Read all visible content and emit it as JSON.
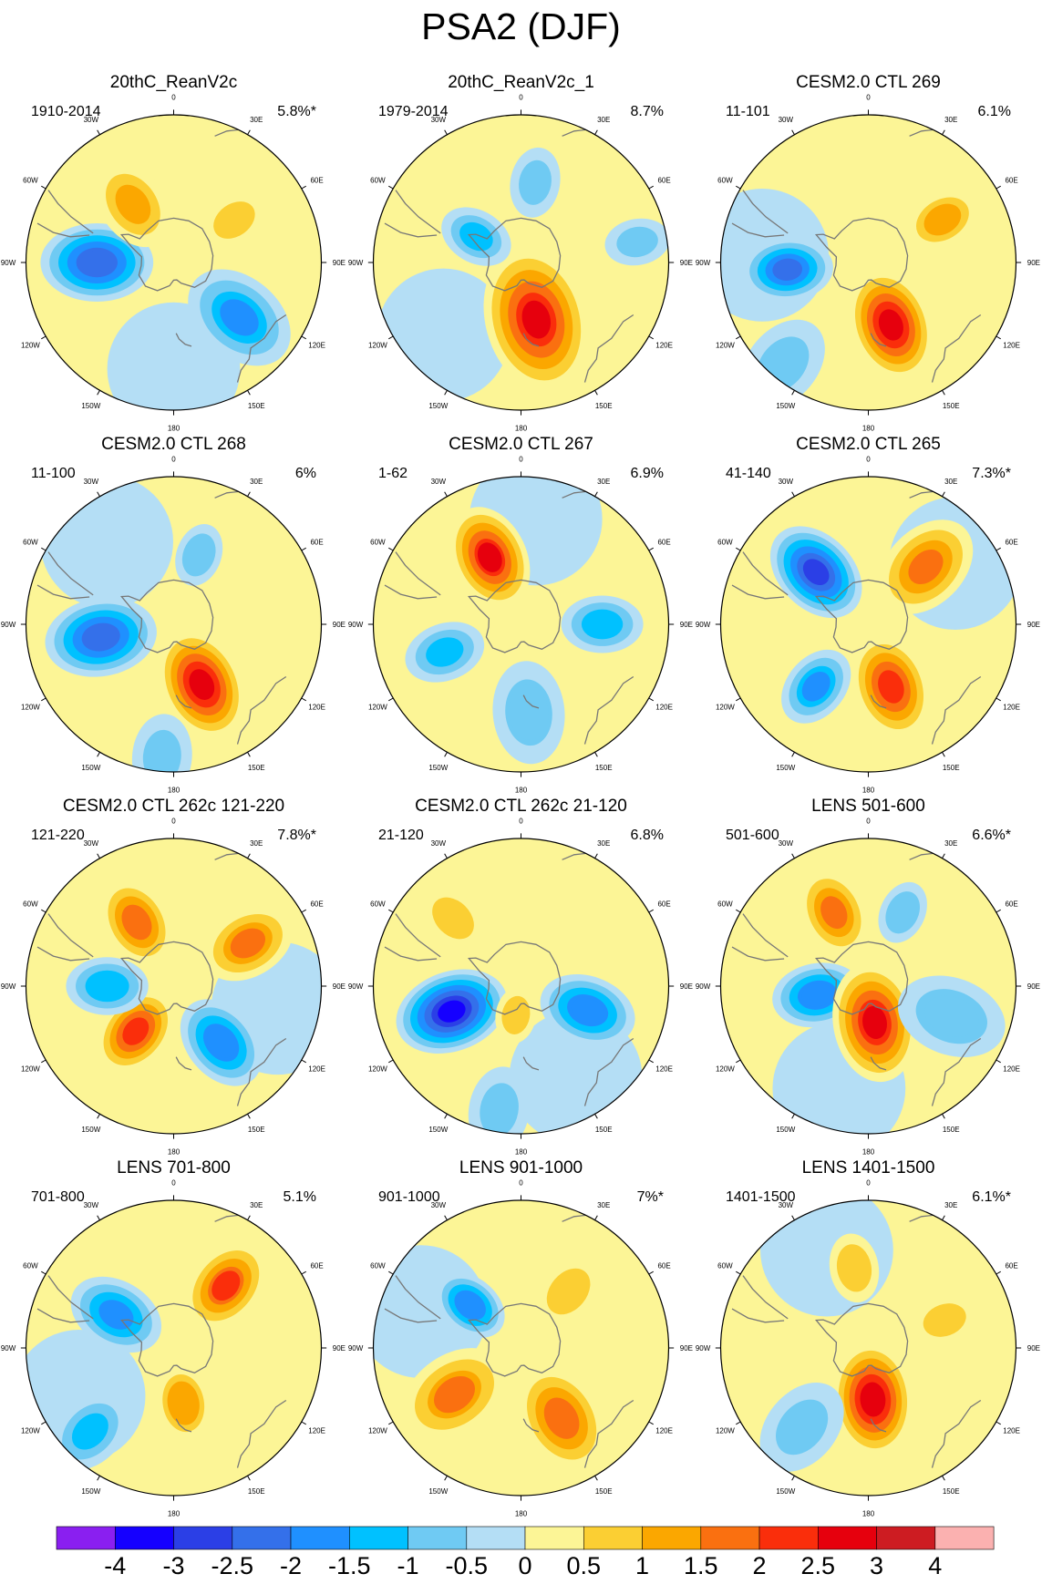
{
  "title": "PSA2 (DJF)",
  "legend": {
    "ticks": [
      "-4",
      "-3",
      "-2.5",
      "-2",
      "-1.5",
      "-1",
      "-0.5",
      "0",
      "0.5",
      "1",
      "1.5",
      "2",
      "2.5",
      "3",
      "4"
    ],
    "colors": [
      "#8a1ff0",
      "#1500ff",
      "#2b3fe6",
      "#3470ea",
      "#1f90ff",
      "#00c1ff",
      "#6fcaf3",
      "#b4def5",
      "#fcf596",
      "#fbcf33",
      "#fba700",
      "#fa7010",
      "#fa2e0b",
      "#e6000d",
      "#cd1c22",
      "#fbb1b0"
    ]
  },
  "map_labels": {
    "lon_0": "0",
    "lon_30e": "30E",
    "lon_60e": "60E",
    "lon_90e": "90E",
    "lon_120e": "120E",
    "lon_150e": "150E",
    "lon_180": "180",
    "lon_150w": "150W",
    "lon_120w": "120W",
    "lon_90w": "90W",
    "lon_60w": "60W",
    "lon_30w": "30W"
  },
  "panels": [
    {
      "title": "20thC_ReanV2c",
      "period": "1910-2014",
      "variance": "5.8%*",
      "anomalies": [
        {
          "lon": -90,
          "dist": 0.52,
          "value": -2.5,
          "spread": 0.3
        },
        {
          "lon": 130,
          "dist": 0.58,
          "value": -1.6,
          "spread": 0.32
        },
        {
          "lon": -35,
          "dist": 0.48,
          "value": 1.2,
          "spread": 0.26
        },
        {
          "lon": 55,
          "dist": 0.5,
          "value": 0.8,
          "spread": 0.2
        }
      ]
    },
    {
      "title": "20thC_ReanV2c_1",
      "period": "1979-2014",
      "variance": "8.7%",
      "anomalies": [
        {
          "lon": 165,
          "dist": 0.4,
          "value": 2.6,
          "spread": 0.4
        },
        {
          "lon": -60,
          "dist": 0.35,
          "value": -1.2,
          "spread": 0.2
        },
        {
          "lon": 80,
          "dist": 0.8,
          "value": -0.8,
          "spread": 0.18
        },
        {
          "lon": 10,
          "dist": 0.55,
          "value": -0.7,
          "spread": 0.2
        }
      ]
    },
    {
      "title": "CESM2.0 CTL 269",
      "period": "11-101",
      "variance": "6.1%",
      "anomalies": [
        {
          "lon": 160,
          "dist": 0.45,
          "value": 2.8,
          "spread": 0.3
        },
        {
          "lon": -95,
          "dist": 0.55,
          "value": -2.2,
          "spread": 0.24
        },
        {
          "lon": 60,
          "dist": 0.58,
          "value": 1.1,
          "spread": 0.22
        },
        {
          "lon": -140,
          "dist": 0.9,
          "value": -0.7,
          "spread": 0.3
        }
      ]
    },
    {
      "title": "CESM2.0 CTL 268",
      "period": "11-100",
      "variance": "6%",
      "anomalies": [
        {
          "lon": -100,
          "dist": 0.5,
          "value": -2.4,
          "spread": 0.3
        },
        {
          "lon": 155,
          "dist": 0.45,
          "value": 2.8,
          "spread": 0.3
        },
        {
          "lon": -175,
          "dist": 0.9,
          "value": -0.7,
          "spread": 0.25
        },
        {
          "lon": 20,
          "dist": 0.5,
          "value": -0.6,
          "spread": 0.18
        }
      ]
    },
    {
      "title": "CESM2.0 CTL 267",
      "period": "1-62",
      "variance": "6.9%",
      "anomalies": [
        {
          "lon": -25,
          "dist": 0.5,
          "value": 2.5,
          "spread": 0.28
        },
        {
          "lon": 90,
          "dist": 0.55,
          "value": -1.4,
          "spread": 0.22
        },
        {
          "lon": -110,
          "dist": 0.55,
          "value": -1.3,
          "spread": 0.22
        },
        {
          "lon": 175,
          "dist": 0.6,
          "value": -0.9,
          "spread": 0.3
        }
      ]
    },
    {
      "title": "CESM2.0 CTL 265",
      "period": "41-140",
      "variance": "7.3%*",
      "anomalies": [
        {
          "lon": -45,
          "dist": 0.5,
          "value": -2.7,
          "spread": 0.28
        },
        {
          "lon": 160,
          "dist": 0.45,
          "value": 2.3,
          "spread": 0.28
        },
        {
          "lon": 45,
          "dist": 0.55,
          "value": 1.7,
          "spread": 0.3
        },
        {
          "lon": -140,
          "dist": 0.55,
          "value": -1.6,
          "spread": 0.22
        }
      ]
    },
    {
      "title": "CESM2.0 CTL 262c 121-220",
      "period": "121-220",
      "variance": "7.8%*",
      "anomalies": [
        {
          "lon": -30,
          "dist": 0.5,
          "value": 1.9,
          "spread": 0.24
        },
        {
          "lon": 60,
          "dist": 0.58,
          "value": 1.6,
          "spread": 0.26
        },
        {
          "lon": 140,
          "dist": 0.5,
          "value": -2.0,
          "spread": 0.26
        },
        {
          "lon": -140,
          "dist": 0.4,
          "value": 2.3,
          "spread": 0.24
        },
        {
          "lon": -90,
          "dist": 0.45,
          "value": -1.5,
          "spread": 0.22
        }
      ]
    },
    {
      "title": "CESM2.0 CTL 262c 21-120",
      "period": "21-120",
      "variance": "6.8%",
      "anomalies": [
        {
          "lon": -110,
          "dist": 0.5,
          "value": -3.2,
          "spread": 0.3
        },
        {
          "lon": 110,
          "dist": 0.48,
          "value": -2.0,
          "spread": 0.26
        },
        {
          "lon": -170,
          "dist": 0.85,
          "value": -0.8,
          "spread": 0.25
        },
        {
          "lon": -170,
          "dist": 0.2,
          "value": 0.9,
          "spread": 0.15
        },
        {
          "lon": -45,
          "dist": 0.65,
          "value": 0.6,
          "spread": 0.2
        }
      ]
    },
    {
      "title": "LENS 501-600",
      "period": "501-600",
      "variance": "6.6%*",
      "anomalies": [
        {
          "lon": -25,
          "dist": 0.55,
          "value": 1.7,
          "spread": 0.24
        },
        {
          "lon": -100,
          "dist": 0.35,
          "value": -2.0,
          "spread": 0.24
        },
        {
          "lon": 170,
          "dist": 0.25,
          "value": 2.6,
          "spread": 0.32
        },
        {
          "lon": 110,
          "dist": 0.6,
          "value": -1.0,
          "spread": 0.32
        },
        {
          "lon": 25,
          "dist": 0.55,
          "value": -0.6,
          "spread": 0.18
        }
      ]
    },
    {
      "title": "LENS 701-800",
      "period": "701-800",
      "variance": "5.1%",
      "anomalies": [
        {
          "lon": -60,
          "dist": 0.45,
          "value": -1.8,
          "spread": 0.26
        },
        {
          "lon": 40,
          "dist": 0.55,
          "value": 2.0,
          "spread": 0.26
        },
        {
          "lon": 170,
          "dist": 0.38,
          "value": 1.0,
          "spread": 0.24
        },
        {
          "lon": -135,
          "dist": 0.8,
          "value": -1.2,
          "spread": 0.25
        }
      ]
    },
    {
      "title": "LENS 901-1000",
      "period": "901-1000",
      "variance": "7%*",
      "anomalies": [
        {
          "lon": -125,
          "dist": 0.55,
          "value": 1.5,
          "spread": 0.32
        },
        {
          "lon": 150,
          "dist": 0.55,
          "value": 1.9,
          "spread": 0.3
        },
        {
          "lon": -50,
          "dist": 0.45,
          "value": -2.0,
          "spread": 0.2
        },
        {
          "lon": 40,
          "dist": 0.5,
          "value": 0.9,
          "spread": 0.22
        }
      ]
    },
    {
      "title": "LENS 1401-1500",
      "period": "1401-1500",
      "variance": "6.1%*",
      "anomalies": [
        {
          "lon": 175,
          "dist": 0.35,
          "value": 2.9,
          "spread": 0.3
        },
        {
          "lon": 70,
          "dist": 0.55,
          "value": 0.9,
          "spread": 0.18
        },
        {
          "lon": -140,
          "dist": 0.7,
          "value": -0.7,
          "spread": 0.3
        },
        {
          "lon": -10,
          "dist": 0.55,
          "value": 0.6,
          "spread": 0.2
        }
      ]
    }
  ]
}
